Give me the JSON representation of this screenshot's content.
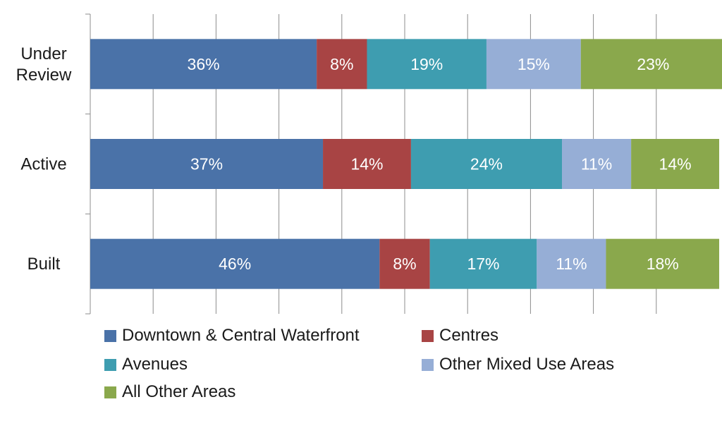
{
  "chart_data": {
    "type": "bar",
    "orientation": "horizontal",
    "stacked": true,
    "percent_stacked": true,
    "categories": [
      "Under Review",
      "Active",
      "Built"
    ],
    "category_lines": [
      [
        "Under",
        "Review"
      ],
      [
        "Active"
      ],
      [
        "Built"
      ]
    ],
    "xlim": [
      0,
      100
    ],
    "grid": true,
    "legend_position": "bottom",
    "series": [
      {
        "name": "Downtown & Central Waterfront",
        "color": "#4a72a8",
        "values": [
          36,
          37,
          46
        ],
        "labels": [
          "36%",
          "37%",
          "46%"
        ]
      },
      {
        "name": "Centres",
        "color": "#a84444",
        "values": [
          8,
          14,
          8
        ],
        "labels": [
          "8%",
          "14%",
          "8%"
        ]
      },
      {
        "name": "Avenues",
        "color": "#3e9db0",
        "values": [
          19,
          24,
          17
        ],
        "labels": [
          "19%",
          "24%",
          "17%"
        ]
      },
      {
        "name": "Other Mixed Use Areas",
        "color": "#96aed6",
        "values": [
          15,
          11,
          11
        ],
        "labels": [
          "15%",
          "11%",
          "11%"
        ]
      },
      {
        "name": "All Other Areas",
        "color": "#8aa84c",
        "values": [
          23,
          14,
          18
        ],
        "labels": [
          "23%",
          "14%",
          "18%"
        ]
      }
    ]
  }
}
